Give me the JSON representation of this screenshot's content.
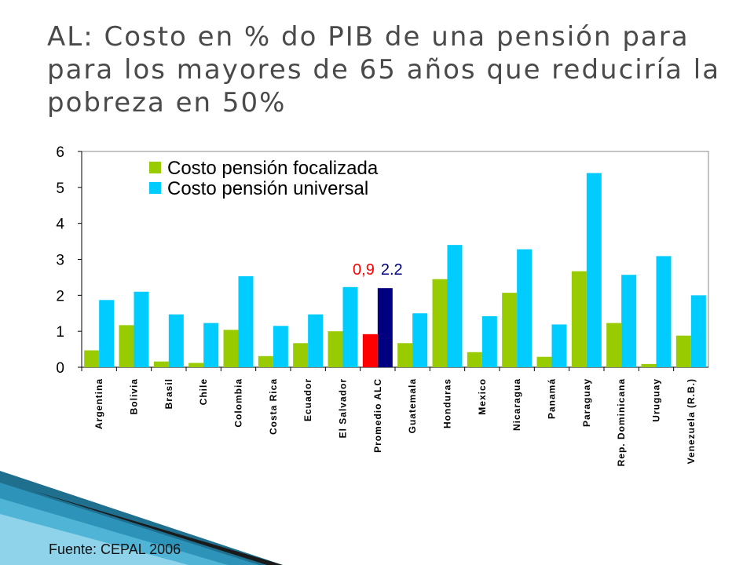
{
  "slide": {
    "title": "AL: Costo en % do PIB de una pensión para para los mayores de 65 años que reduciría la pobreza en 50%",
    "source": "Fuente: CEPAL 2006"
  },
  "chart_data": {
    "type": "bar",
    "title": "",
    "xlabel": "",
    "ylabel": "",
    "ylim": [
      0,
      6
    ],
    "yticks": [
      0,
      1,
      2,
      3,
      4,
      5,
      6
    ],
    "grid": false,
    "legend_position": "top-left",
    "categories": [
      "Argentina",
      "Bolivia",
      "Brasil",
      "Chile",
      "Colombia",
      "Costa Rica",
      "Ecuador",
      "El Salvador",
      "Promedio ALC",
      "Guatemala",
      "Honduras",
      "Mexico",
      "Nicaragua",
      "Panamá",
      "Paraguay",
      "Rep. Dominicana",
      "Uruguay",
      "Venezuela (R.B.)"
    ],
    "series": [
      {
        "name": "Costo pensión focalizada",
        "color": "#99cc00",
        "values": [
          0.47,
          1.17,
          0.16,
          0.12,
          1.04,
          0.31,
          0.67,
          1.0,
          0.92,
          0.67,
          2.45,
          0.42,
          2.07,
          0.29,
          2.67,
          1.23,
          0.09,
          0.88
        ]
      },
      {
        "name": "Costo pensión universal",
        "color": "#00ccff",
        "values": [
          1.87,
          2.1,
          1.47,
          1.23,
          2.53,
          1.15,
          1.47,
          2.23,
          2.2,
          1.5,
          3.4,
          1.42,
          3.28,
          1.19,
          5.4,
          2.57,
          3.09,
          2.0
        ]
      }
    ],
    "highlight": {
      "category": "Promedio ALC",
      "colors": [
        "#ff0000",
        "#000080"
      ]
    },
    "annotations": [
      {
        "text": "0,9",
        "color": "#ff0000"
      },
      {
        "text": "2.2",
        "color": "#000080"
      }
    ]
  }
}
